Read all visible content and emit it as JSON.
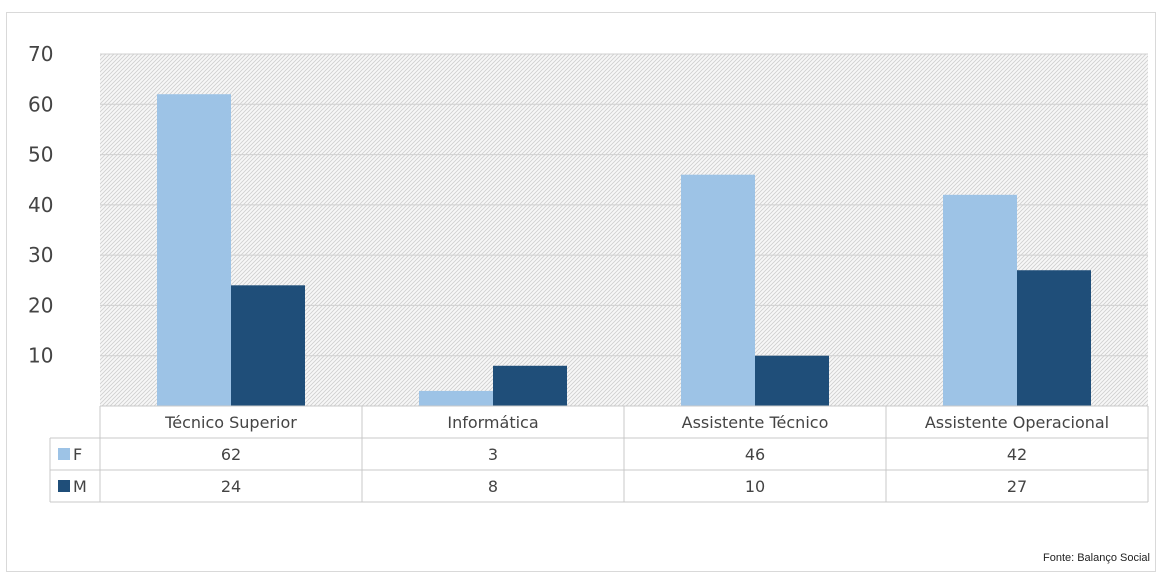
{
  "chart_data": {
    "type": "bar",
    "categories": [
      "Técnico Superior",
      "Informática",
      "Assistente Técnico",
      "Assistente Operacional"
    ],
    "series": [
      {
        "name": "F",
        "values": [
          62,
          3,
          46,
          42
        ],
        "color": "#9dc3e6"
      },
      {
        "name": "M",
        "values": [
          24,
          8,
          10,
          27
        ],
        "color": "#1f4e79"
      }
    ],
    "ylim": [
      0,
      70
    ],
    "yticks": [
      "10",
      "20",
      "30",
      "40",
      "50",
      "60",
      "70"
    ],
    "grid": true,
    "legend": "data-table",
    "title": "",
    "xlabel": "",
    "ylabel": ""
  },
  "source_note": "Fonte: Balanço Social"
}
